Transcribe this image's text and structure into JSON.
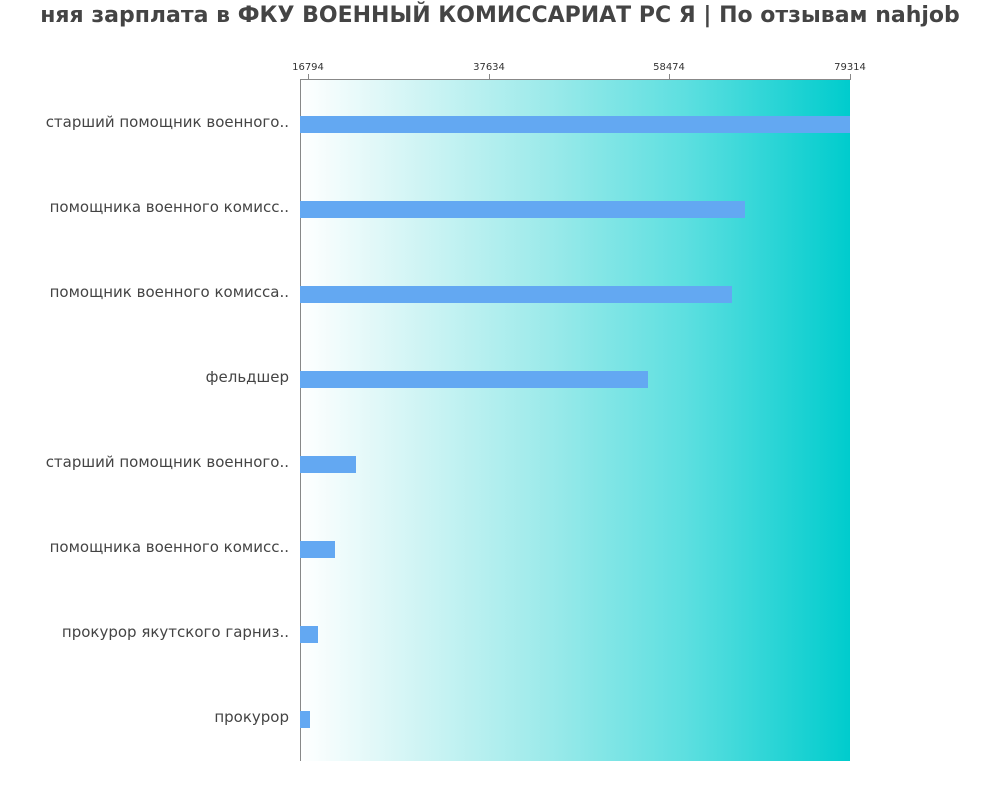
{
  "chart_data": {
    "type": "bar",
    "orientation": "horizontal",
    "title": "няя зарплата в ФКУ ВОЕННЫЙ КОМИССАРИАТ РС Я | По отзывам nahjob",
    "xlabel": "",
    "ylabel": "",
    "xlim": [
      15871,
      79314
    ],
    "x_ticks": [
      "16794",
      "37634",
      "58474",
      "79314"
    ],
    "x_tick_values": [
      16794,
      37634,
      58474,
      79314
    ],
    "grid": false,
    "legend": null,
    "categories": [
      "старший помощник военного..",
      "помощника военного комисс..",
      "помощник военного комисса..",
      "фельдшер",
      "старший помощник военного..",
      "помощника военного комисс..",
      "прокурор якутского гарниз..",
      "прокурор"
    ],
    "values": [
      79314,
      67200,
      65700,
      56000,
      22300,
      19900,
      17900,
      17000
    ],
    "colors": {
      "bar": "#63a8f2",
      "background_gradient_start": "#ffffff",
      "background_gradient_end": "#00cccd",
      "text": "#444444"
    }
  }
}
